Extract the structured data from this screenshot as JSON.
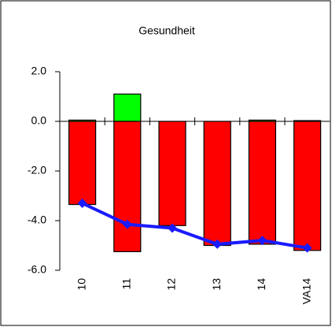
{
  "chart_data": {
    "type": "bar_line",
    "title": "Gesundheit",
    "categories": [
      "10",
      "11",
      "12",
      "13",
      "14",
      "VA14"
    ],
    "series": [
      {
        "type": "bar",
        "color": "#00ff00",
        "values": [
          0.05,
          1.1,
          0,
          0,
          0.05,
          0.03
        ]
      },
      {
        "type": "bar",
        "color": "#ff0000",
        "values": [
          -3.35,
          -5.25,
          -4.2,
          -5.0,
          -4.95,
          -5.2
        ]
      },
      {
        "type": "line",
        "color": "#1a1aff",
        "values": [
          -3.3,
          -4.15,
          -4.3,
          -4.95,
          -4.8,
          -5.1
        ]
      }
    ],
    "ylim": [
      -6,
      2
    ],
    "yticks": [
      {
        "value": -6,
        "label": "-6.0"
      },
      {
        "value": -4,
        "label": "-4.0"
      },
      {
        "value": -2,
        "label": "-2.0"
      },
      {
        "value": 0,
        "label": "0.0"
      },
      {
        "value": 2,
        "label": "2.0"
      }
    ],
    "grid": false
  }
}
